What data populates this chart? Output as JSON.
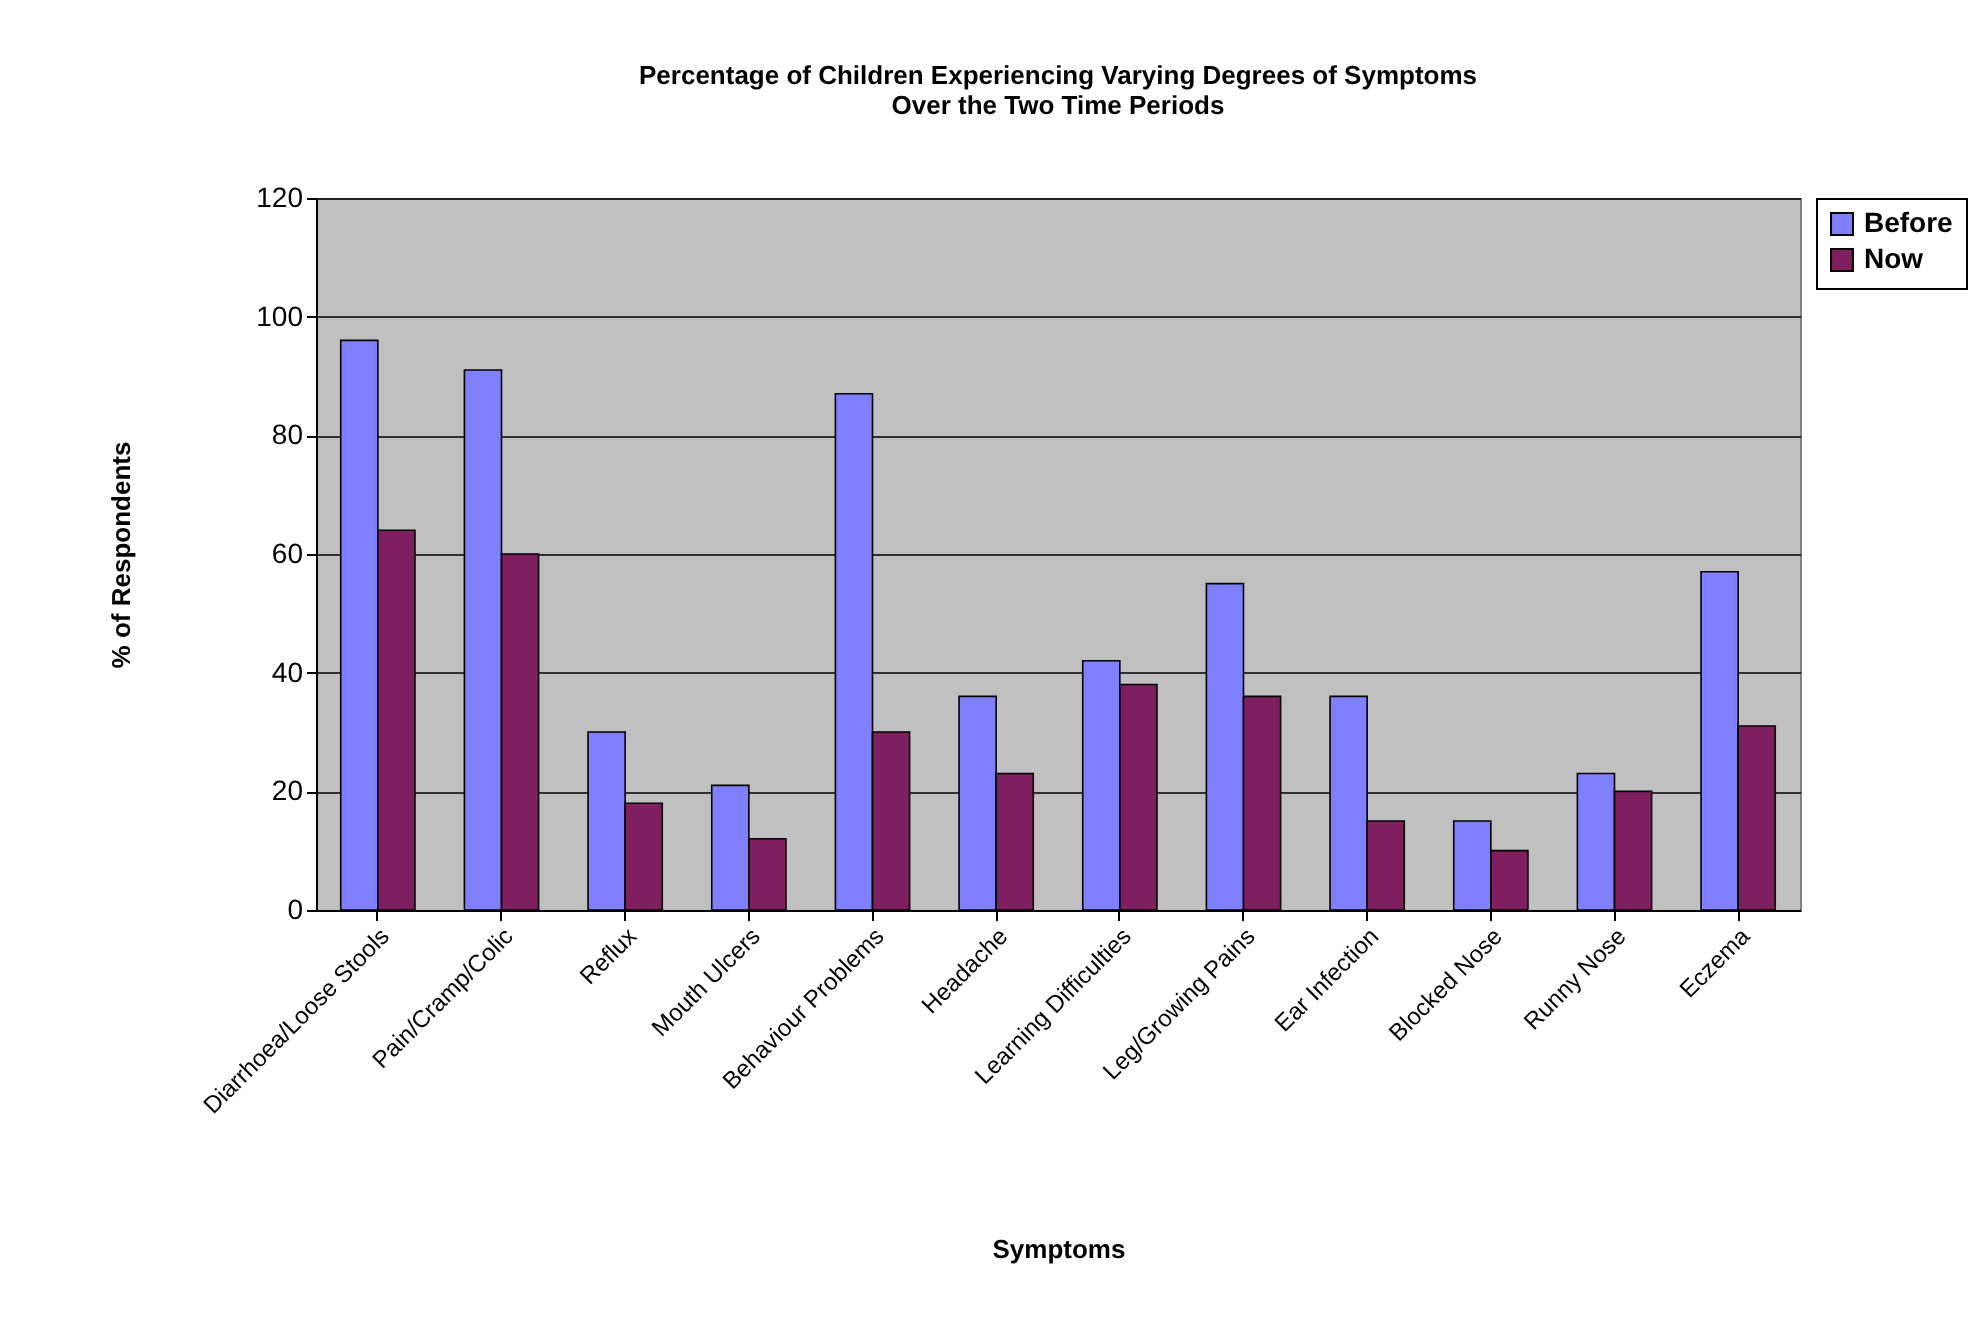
{
  "chart_data": {
    "type": "bar",
    "title": "Percentage of Children Experiencing Varying Degrees of Symptoms",
    "subtitle": "Over the Two Time Periods",
    "xlabel": "Symptoms",
    "ylabel": "% of Respondents",
    "categories": [
      "Diarrhoea/Loose Stools",
      "Pain/Cramp/Colic",
      "Reflux",
      "Mouth Ulcers",
      "Behaviour Problems",
      "Headache",
      "Learning Difficulties",
      "Leg/Growing Pains",
      "Ear Infection",
      "Blocked Nose",
      "Runny Nose",
      "Eczema"
    ],
    "series": [
      {
        "name": "Before",
        "color": "#8080ff",
        "values": [
          96,
          91,
          30,
          21,
          87,
          36,
          42,
          55,
          36,
          15,
          23,
          57
        ]
      },
      {
        "name": "Now",
        "color": "#7f1f5f",
        "values": [
          64,
          60,
          18,
          12,
          30,
          23,
          38,
          36,
          15,
          10,
          20,
          31
        ]
      }
    ],
    "ylim": [
      0,
      120
    ],
    "yticks": [
      0,
      20,
      40,
      60,
      80,
      100,
      120
    ],
    "grid": "y",
    "legend": "right"
  }
}
